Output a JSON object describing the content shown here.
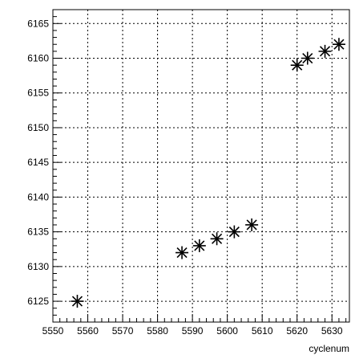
{
  "chart_data": {
    "type": "scatter",
    "title": "",
    "xlabel": "cyclenum",
    "ylabel": "",
    "xlim": [
      5550,
      5635
    ],
    "ylim": [
      6122,
      6167
    ],
    "x_ticks": [
      5550,
      5560,
      5570,
      5580,
      5590,
      5600,
      5610,
      5620,
      5630
    ],
    "y_ticks": [
      6125,
      6130,
      6135,
      6140,
      6145,
      6150,
      6155,
      6160,
      6165
    ],
    "grid": true,
    "grid_style": "dotted",
    "marker": "asterisk",
    "marker_color": "#000000",
    "series": [
      {
        "points": [
          {
            "x": 5557,
            "y": 6125
          },
          {
            "x": 5587,
            "y": 6132
          },
          {
            "x": 5592,
            "y": 6133
          },
          {
            "x": 5597,
            "y": 6134
          },
          {
            "x": 5602,
            "y": 6135
          },
          {
            "x": 5607,
            "y": 6136
          },
          {
            "x": 5620,
            "y": 6159
          },
          {
            "x": 5623,
            "y": 6160
          },
          {
            "x": 5628,
            "y": 6161
          },
          {
            "x": 5632,
            "y": 6162
          }
        ]
      }
    ]
  }
}
